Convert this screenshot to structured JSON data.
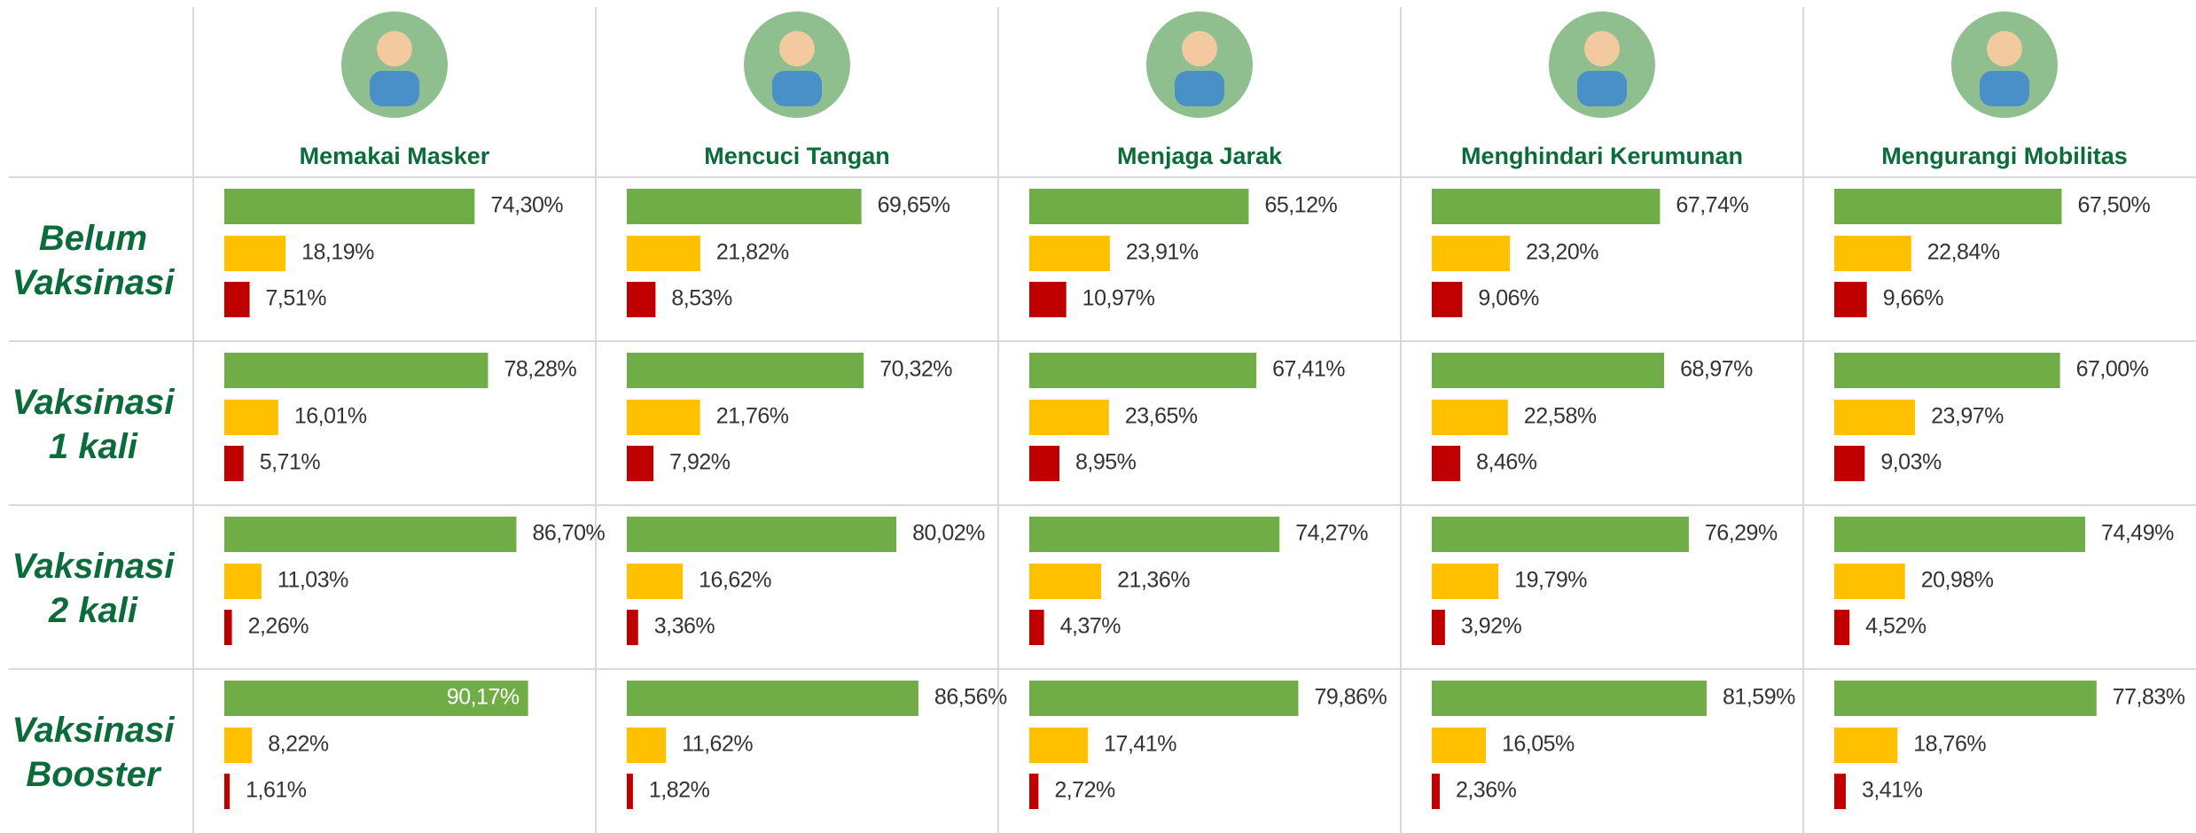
{
  "table": {
    "colors": [
      "#70ad47",
      "#ffc000",
      "#c00000"
    ],
    "columns": [
      {
        "label": "Memakai Masker"
      },
      {
        "label": "Mencuci Tangan"
      },
      {
        "label": "Menjaga Jarak"
      },
      {
        "label": "Menghindari Kerumunan"
      },
      {
        "label": "Mengurangi Mobilitas"
      }
    ],
    "rows": [
      {
        "label": [
          "Belum",
          "Vaksinasi"
        ],
        "cells": [
          {
            "values": [
              74.3,
              18.19,
              7.51
            ],
            "value_labels": [
              "74,30%",
              "18,19%",
              "7,51%"
            ]
          },
          {
            "values": [
              69.65,
              21.82,
              8.53
            ],
            "value_labels": [
              "69,65%",
              "21,82%",
              "8,53%"
            ]
          },
          {
            "values": [
              65.12,
              23.91,
              10.97
            ],
            "value_labels": [
              "65,12%",
              "23,91%",
              "10,97%"
            ]
          },
          {
            "values": [
              67.74,
              23.2,
              9.06
            ],
            "value_labels": [
              "67,74%",
              "23,20%",
              "9,06%"
            ]
          },
          {
            "values": [
              67.5,
              22.84,
              9.66
            ],
            "value_labels": [
              "67,50%",
              "22,84%",
              "9,66%"
            ]
          }
        ]
      },
      {
        "label": [
          "Vaksinasi",
          "1 kali"
        ],
        "cells": [
          {
            "values": [
              78.28,
              16.01,
              5.71
            ],
            "value_labels": [
              "78,28%",
              "16,01%",
              "5,71%"
            ]
          },
          {
            "values": [
              70.32,
              21.76,
              7.92
            ],
            "value_labels": [
              "70,32%",
              "21,76%",
              "7,92%"
            ]
          },
          {
            "values": [
              67.41,
              23.65,
              8.95
            ],
            "value_labels": [
              "67,41%",
              "23,65%",
              "8,95%"
            ]
          },
          {
            "values": [
              68.97,
              22.58,
              8.46
            ],
            "value_labels": [
              "68,97%",
              "22,58%",
              "8,46%"
            ]
          },
          {
            "values": [
              67.0,
              23.97,
              9.03
            ],
            "value_labels": [
              "67,00%",
              "23,97%",
              "9,03%"
            ]
          }
        ]
      },
      {
        "label": [
          "Vaksinasi",
          "2 kali"
        ],
        "cells": [
          {
            "values": [
              86.7,
              11.03,
              2.26
            ],
            "value_labels": [
              "86,70%",
              "11,03%",
              "2,26%"
            ]
          },
          {
            "values": [
              80.02,
              16.62,
              3.36
            ],
            "value_labels": [
              "80,02%",
              "16,62%",
              "3,36%"
            ]
          },
          {
            "values": [
              74.27,
              21.36,
              4.37
            ],
            "value_labels": [
              "74,27%",
              "21,36%",
              "4,37%"
            ]
          },
          {
            "values": [
              76.29,
              19.79,
              3.92
            ],
            "value_labels": [
              "76,29%",
              "19,79%",
              "3,92%"
            ]
          },
          {
            "values": [
              74.49,
              20.98,
              4.52
            ],
            "value_labels": [
              "74,49%",
              "20,98%",
              "4,52%"
            ]
          }
        ]
      },
      {
        "label": [
          "Vaksinasi",
          "Booster"
        ],
        "cells": [
          {
            "values": [
              90.17,
              8.22,
              1.61
            ],
            "value_labels": [
              "90,17%",
              "8,22%",
              "1,61%"
            ]
          },
          {
            "values": [
              86.56,
              11.62,
              1.82
            ],
            "value_labels": [
              "86,56%",
              "11,62%",
              "1,82%"
            ]
          },
          {
            "values": [
              79.86,
              17.41,
              2.72
            ],
            "value_labels": [
              "79,86%",
              "17,41%",
              "2,72%"
            ]
          },
          {
            "values": [
              81.59,
              16.05,
              2.36
            ],
            "value_labels": [
              "81,59%",
              "16,05%",
              "2,36%"
            ]
          },
          {
            "values": [
              77.83,
              18.76,
              3.41
            ],
            "value_labels": [
              "77,83%",
              "18,76%",
              "3,41%"
            ]
          }
        ]
      }
    ]
  }
}
